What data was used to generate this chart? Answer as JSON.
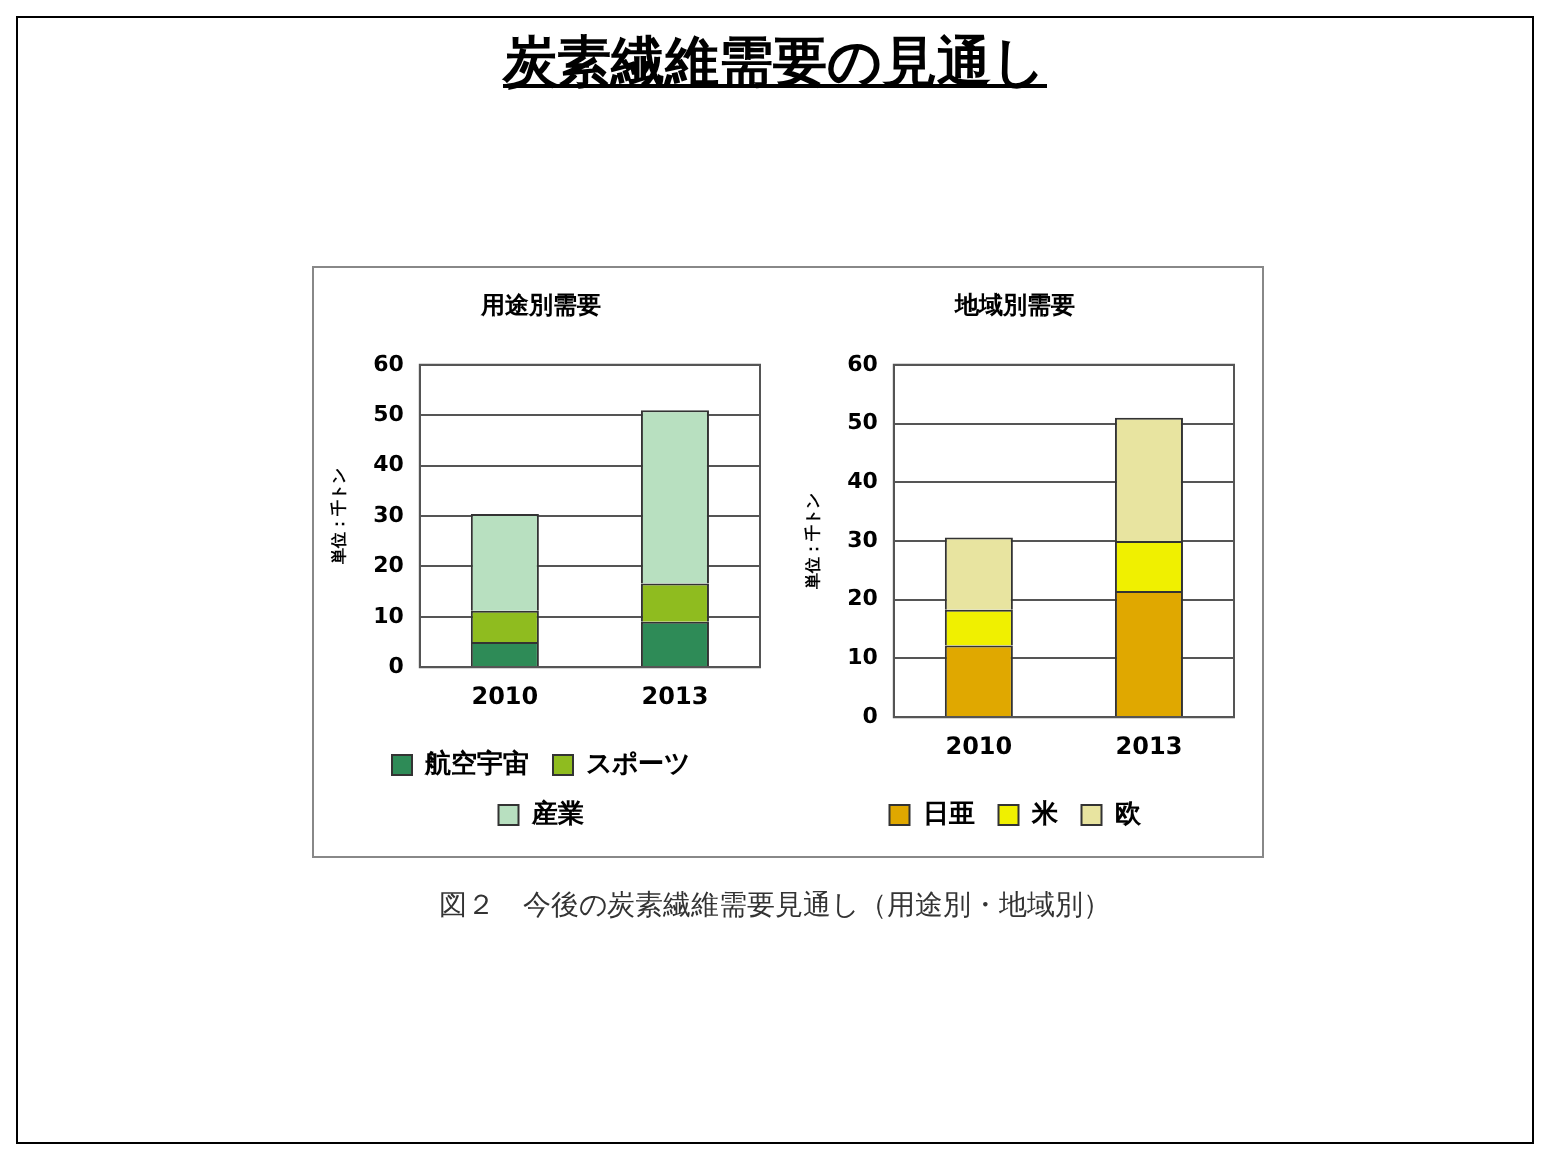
{
  "chart_data": [
    {
      "type": "bar",
      "title": "用途別需要",
      "ylabel": "単位：千トン",
      "categories": [
        "2010",
        "2013"
      ],
      "stacked": true,
      "ylim": [
        0,
        60
      ],
      "yticks": [
        0,
        10,
        20,
        30,
        40,
        50,
        60
      ],
      "grid": "y",
      "legend": "bottom",
      "series": [
        {
          "name": "航空宇宙",
          "color": "#2e8b57",
          "values": [
            5,
            9
          ]
        },
        {
          "name": "スポーツ",
          "color": "#8fbc1f",
          "values": [
            6.2,
            7.6
          ]
        },
        {
          "name": "産業",
          "color": "#b8e0c0",
          "values": [
            19.2,
            34.4
          ]
        }
      ],
      "annotations": [
        "炭素繊維需要の見通し",
        "図２　今後の炭素繊維需要見通し（用途別・地域別）"
      ]
    },
    {
      "type": "bar",
      "title": "地域別需要",
      "ylabel": "単位：千トン",
      "categories": [
        "2010",
        "2013"
      ],
      "stacked": true,
      "ylim": [
        0,
        60
      ],
      "yticks": [
        0,
        10,
        20,
        30,
        40,
        50,
        60
      ],
      "grid": "y",
      "legend": "bottom",
      "series": [
        {
          "name": "日亜",
          "color": "#e0a800",
          "values": [
            12.2,
            21.5
          ]
        },
        {
          "name": "米",
          "color": "#f0f000",
          "values": [
            6.1,
            8.5
          ]
        },
        {
          "name": "欧",
          "color": "#e8e4a0",
          "values": [
            12.3,
            21
          ]
        }
      ]
    }
  ]
}
